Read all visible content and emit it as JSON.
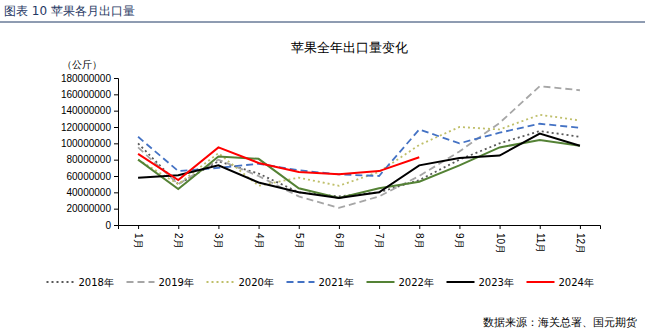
{
  "chart_data": {
    "type": "line",
    "header": "图表 10 苹果各月出口量",
    "title": "苹果全年出口量变化",
    "y_label": "（公斤）",
    "source": "数据来源：海关总署、国元期货",
    "categories": [
      "1月",
      "2月",
      "3月",
      "4月",
      "5月",
      "6月",
      "7月",
      "8月",
      "9月",
      "10月",
      "11月",
      "12月"
    ],
    "series": [
      {
        "name": "2018年",
        "color": "#595959",
        "line_style": "dotted",
        "values": [
          100000000,
          50000000,
          78000000,
          63000000,
          40000000,
          35000000,
          40000000,
          55000000,
          80000000,
          100000000,
          115000000,
          108000000
        ]
      },
      {
        "name": "2019年",
        "color": "#a6a6a6",
        "line_style": "dashed",
        "values": [
          95000000,
          50000000,
          80000000,
          60000000,
          35000000,
          21000000,
          35000000,
          60000000,
          90000000,
          125000000,
          170000000,
          165000000
        ]
      },
      {
        "name": "2020年",
        "color": "#bfbf6a",
        "line_style": "dotted",
        "values": [
          80000000,
          50000000,
          88000000,
          48000000,
          58000000,
          48000000,
          65000000,
          98000000,
          120000000,
          117000000,
          135000000,
          128000000
        ]
      },
      {
        "name": "2021年",
        "color": "#4472c4",
        "line_style": "dashed",
        "values": [
          108000000,
          66000000,
          70000000,
          75000000,
          67000000,
          62000000,
          60000000,
          117000000,
          100000000,
          113000000,
          124000000,
          119000000
        ]
      },
      {
        "name": "2022年",
        "color": "#548235",
        "line_style": "solid",
        "values": [
          80000000,
          44000000,
          84000000,
          81000000,
          45000000,
          33000000,
          45000000,
          53000000,
          73000000,
          95000000,
          104000000,
          97000000
        ]
      },
      {
        "name": "2023年",
        "color": "#000000",
        "line_style": "solid",
        "values": [
          58000000,
          61000000,
          73000000,
          52000000,
          40000000,
          33000000,
          40000000,
          73000000,
          82000000,
          85000000,
          112000000,
          97000000
        ]
      },
      {
        "name": "2024年",
        "color": "#ff0000",
        "line_style": "solid",
        "values": [
          87000000,
          55000000,
          95000000,
          76000000,
          65000000,
          62000000,
          66000000,
          83000000,
          null,
          null,
          null,
          null
        ]
      }
    ],
    "ylim": [
      0,
      180000000
    ],
    "yticks": [
      0,
      20000000,
      40000000,
      60000000,
      80000000,
      100000000,
      120000000,
      140000000,
      160000000,
      180000000
    ],
    "grid": false,
    "legend": "bottom"
  }
}
